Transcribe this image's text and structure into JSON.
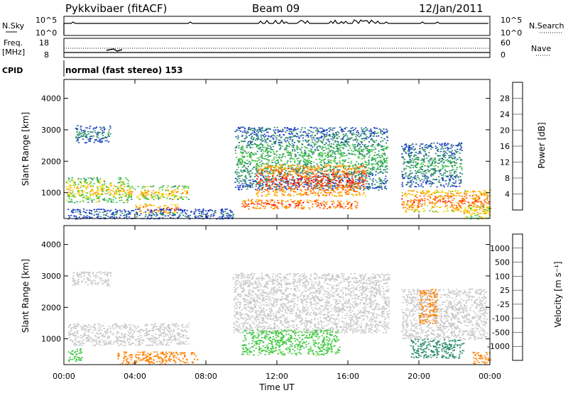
{
  "header": {
    "station": "Pykkvibaer (fitACF)",
    "beam": "Beam 09",
    "date": "12/Jan/2011"
  },
  "status_panel": {
    "nsky_label": "N.Sky",
    "nsky_ticks": [
      "10^5",
      "10^0"
    ],
    "nsearch_label": "N.Search",
    "nsearch_ticks": [
      "10^5",
      "10^0"
    ],
    "freq_label": "Freq.",
    "freq_unit": "[MHz]",
    "freq_ticks": [
      "18",
      "8"
    ],
    "nave_label": "Nave",
    "nave_ticks": [
      "60",
      "0"
    ],
    "cpid_label": "CPID",
    "cpid_value": "normal (fast stereo) 153"
  },
  "chart_data": [
    {
      "type": "heatmap",
      "name": "power",
      "ylabel": "Slant Range [km]",
      "xlim_hours": [
        0,
        24
      ],
      "ylim_km": [
        180,
        4600
      ],
      "yticks": [
        "1000",
        "2000",
        "3000",
        "4000"
      ],
      "colorbar": {
        "label": "Power [dB]",
        "ticks": [
          "28",
          "24",
          "20",
          "16",
          "12",
          "8",
          "4"
        ],
        "colors": [
          "#ff0000",
          "#ff5a00",
          "#ffa000",
          "#f0d200",
          "#3cc83c",
          "#2c8c6c",
          "#1e3cc8",
          "#0000ff"
        ]
      },
      "regions": [
        {
          "t": [
            0.6,
            2.6
          ],
          "r": [
            2600,
            3150
          ],
          "level": [
            4,
            12
          ]
        },
        {
          "t": [
            0.1,
            3.6
          ],
          "r": [
            700,
            1500
          ],
          "level": [
            8,
            24
          ]
        },
        {
          "t": [
            3.6,
            7.0
          ],
          "r": [
            800,
            1250
          ],
          "level": [
            8,
            26
          ]
        },
        {
          "t": [
            4.0,
            6.4
          ],
          "r": [
            350,
            650
          ],
          "level": [
            14,
            30
          ]
        },
        {
          "t": [
            0.2,
            9.5
          ],
          "r": [
            180,
            500
          ],
          "level": [
            4,
            10
          ]
        },
        {
          "t": [
            9.6,
            18.2
          ],
          "r": [
            1100,
            3100
          ],
          "level": [
            4,
            16
          ]
        },
        {
          "t": [
            10.8,
            17.0
          ],
          "r": [
            900,
            1900
          ],
          "level": [
            18,
            32
          ]
        },
        {
          "t": [
            10.0,
            14.5
          ],
          "r": [
            500,
            800
          ],
          "level": [
            20,
            30
          ]
        },
        {
          "t": [
            14.5,
            16.5
          ],
          "r": [
            500,
            750
          ],
          "level": [
            20,
            30
          ]
        },
        {
          "t": [
            19.0,
            22.4
          ],
          "r": [
            1200,
            2600
          ],
          "level": [
            4,
            14
          ]
        },
        {
          "t": [
            19.0,
            24.0
          ],
          "r": [
            400,
            1100
          ],
          "level": [
            14,
            30
          ]
        },
        {
          "t": [
            22.5,
            24.0
          ],
          "r": [
            180,
            600
          ],
          "level": [
            10,
            24
          ]
        }
      ]
    },
    {
      "type": "heatmap",
      "name": "velocity",
      "xlabel": "Time UT",
      "ylabel": "Slant Range [km]",
      "xlim_hours": [
        0,
        24
      ],
      "ylim_km": [
        180,
        4600
      ],
      "xticks": [
        "00:00",
        "04:00",
        "08:00",
        "12:00",
        "16:00",
        "20:00",
        "00:00"
      ],
      "yticks": [
        "1000",
        "2000",
        "3000",
        "4000"
      ],
      "colorbar": {
        "label": "Velocity [m s⁻¹]",
        "ticks": [
          "1000",
          "500",
          "100",
          "25",
          "-25",
          "-100",
          "-500",
          "-1000"
        ],
        "colors": [
          "#1e3cc8",
          "#2c8c6c",
          "#3cc83c",
          "#8ce06c",
          "#c8c8c8",
          "#ffc000",
          "#ff8000",
          "#ff5a00",
          "#ff0000"
        ]
      },
      "regions": [
        {
          "t": [
            0.4,
            2.6
          ],
          "r": [
            2700,
            3150
          ],
          "v": [
            -25,
            25
          ]
        },
        {
          "t": [
            0.2,
            7.0
          ],
          "r": [
            800,
            1500
          ],
          "v": [
            -25,
            25
          ]
        },
        {
          "t": [
            0.2,
            1.0
          ],
          "r": [
            300,
            700
          ],
          "v": [
            100,
            500
          ]
        },
        {
          "t": [
            3.0,
            7.5
          ],
          "r": [
            200,
            600
          ],
          "v": [
            -500,
            -100
          ]
        },
        {
          "t": [
            9.5,
            18.3
          ],
          "r": [
            1200,
            3100
          ],
          "v": [
            -25,
            25
          ]
        },
        {
          "t": [
            10.0,
            15.5
          ],
          "r": [
            500,
            1300
          ],
          "v": [
            25,
            500
          ]
        },
        {
          "t": [
            19.0,
            23.8
          ],
          "r": [
            1000,
            2600
          ],
          "v": [
            -25,
            25
          ]
        },
        {
          "t": [
            19.5,
            22.5
          ],
          "r": [
            400,
            1000
          ],
          "v": [
            500,
            1000
          ]
        },
        {
          "t": [
            20.0,
            21.0
          ],
          "r": [
            1500,
            2600
          ],
          "v": [
            -500,
            -100
          ]
        },
        {
          "t": [
            23.0,
            24.0
          ],
          "r": [
            200,
            600
          ],
          "v": [
            -500,
            -100
          ]
        }
      ]
    }
  ]
}
